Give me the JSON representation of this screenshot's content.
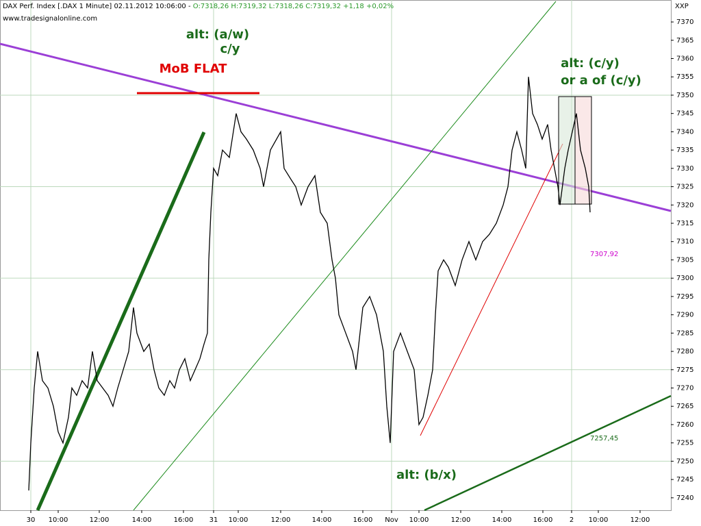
{
  "chart_data": {
    "type": "line",
    "title": "DAX Perf. Index [.DAX  1 Minute] 02.11.2012 10:06:00 - ",
    "ohlc": "O:7318,26 H:7319,32 L:7318,26 C:7319,32 +1,18 +0,02%",
    "watermark": "www.tradesignalonline.com",
    "axis_label": "XXP",
    "x": [
      42,
      45,
      50,
      55,
      62,
      70,
      78,
      85,
      92,
      100,
      105,
      112,
      120,
      128,
      135,
      142,
      150,
      158,
      165,
      172,
      180,
      188,
      195,
      200,
      210,
      218,
      225,
      232,
      240,
      248,
      255,
      262,
      270,
      278,
      285,
      292,
      298,
      303,
      305,
      308,
      312,
      318,
      325,
      335,
      345,
      352,
      360,
      370,
      380,
      385,
      395,
      410,
      415,
      425,
      432,
      440,
      450,
      460,
      468,
      478,
      485,
      490,
      495,
      505,
      515,
      520,
      530,
      540,
      550,
      560,
      565,
      570,
      575,
      585,
      595,
      605,
      612,
      618,
      625,
      632,
      636,
      640,
      648,
      655,
      665,
      675,
      685,
      695,
      705,
      715,
      725,
      735,
      742,
      748,
      755,
      762,
      768,
      772,
      778,
      785,
      792,
      800,
      805,
      810,
      815,
      818,
      825,
      830,
      836,
      842,
      848,
      855,
      860,
      862
    ],
    "series": [
      {
        "name": "DAX Perf. Index",
        "color": "#000000",
        "values": [
          7242,
          7255,
          7270,
          7280,
          7272,
          7270,
          7265,
          7258,
          7255,
          7262,
          7270,
          7268,
          7272,
          7270,
          7280,
          7272,
          7270,
          7268,
          7265,
          7270,
          7275,
          7280,
          7292,
          7285,
          7280,
          7282,
          7275,
          7270,
          7268,
          7272,
          7270,
          7275,
          7278,
          7272,
          7275,
          7278,
          7282,
          7285,
          7305,
          7318,
          7330,
          7328,
          7335,
          7333,
          7345,
          7340,
          7338,
          7335,
          7330,
          7325,
          7335,
          7340,
          7330,
          7327,
          7325,
          7320,
          7325,
          7328,
          7318,
          7315,
          7305,
          7300,
          7290,
          7285,
          7280,
          7275,
          7292,
          7295,
          7290,
          7280,
          7265,
          7255,
          7280,
          7285,
          7280,
          7275,
          7260,
          7262,
          7268,
          7275,
          7290,
          7302,
          7305,
          7303,
          7298,
          7305,
          7310,
          7305,
          7310,
          7312,
          7315,
          7320,
          7325,
          7335,
          7340,
          7335,
          7330,
          7355,
          7345,
          7342,
          7338,
          7342,
          7335,
          7330,
          7325,
          7320,
          7330,
          7335,
          7340,
          7345,
          7335,
          7330,
          7325,
          7318
        ]
      }
    ],
    "xlim": [
      0,
      980
    ],
    "xticks": [
      {
        "value": 45,
        "label": "30"
      },
      {
        "value": 85,
        "label": "10:00"
      },
      {
        "value": 145,
        "label": "12:00"
      },
      {
        "value": 207,
        "label": "14:00"
      },
      {
        "value": 268,
        "label": "16:00"
      },
      {
        "value": 312,
        "label": "31"
      },
      {
        "value": 348,
        "label": "10:00"
      },
      {
        "value": 410,
        "label": "12:00"
      },
      {
        "value": 470,
        "label": "14:00"
      },
      {
        "value": 530,
        "label": "16:00"
      },
      {
        "value": 572,
        "label": "Nov"
      },
      {
        "value": 612,
        "label": "10:00"
      },
      {
        "value": 673,
        "label": "12:00"
      },
      {
        "value": 733,
        "label": "14:00"
      },
      {
        "value": 793,
        "label": "16:00"
      },
      {
        "value": 835,
        "label": "2"
      },
      {
        "value": 874,
        "label": "10:00"
      },
      {
        "value": 935,
        "label": "12:00"
      }
    ],
    "ylim": [
      7236.6,
      7376
    ],
    "yticks": [
      7240,
      7245,
      7250,
      7255,
      7260,
      7265,
      7270,
      7275,
      7280,
      7285,
      7290,
      7295,
      7300,
      7305,
      7310,
      7315,
      7320,
      7325,
      7330,
      7335,
      7340,
      7345,
      7350,
      7355,
      7360,
      7365,
      7370
    ],
    "annotations": [
      {
        "text": "alt: (a/w)",
        "color": "#1a6b1a"
      },
      {
        "text": "c/y",
        "color": "#1a6b1a"
      },
      {
        "text": "MoB FLAT",
        "color": "#e00000"
      },
      {
        "text": "alt: (c/y)",
        "color": "#1a6b1a"
      },
      {
        "text": "or a of (c/y)",
        "color": "#1a6b1a"
      },
      {
        "text": "alt: (b/x)",
        "color": "#1a6b1a"
      },
      {
        "text": "7307,92",
        "color": "#cc00cc"
      },
      {
        "text": "7257,45",
        "color": "#1a6b1a"
      }
    ]
  }
}
